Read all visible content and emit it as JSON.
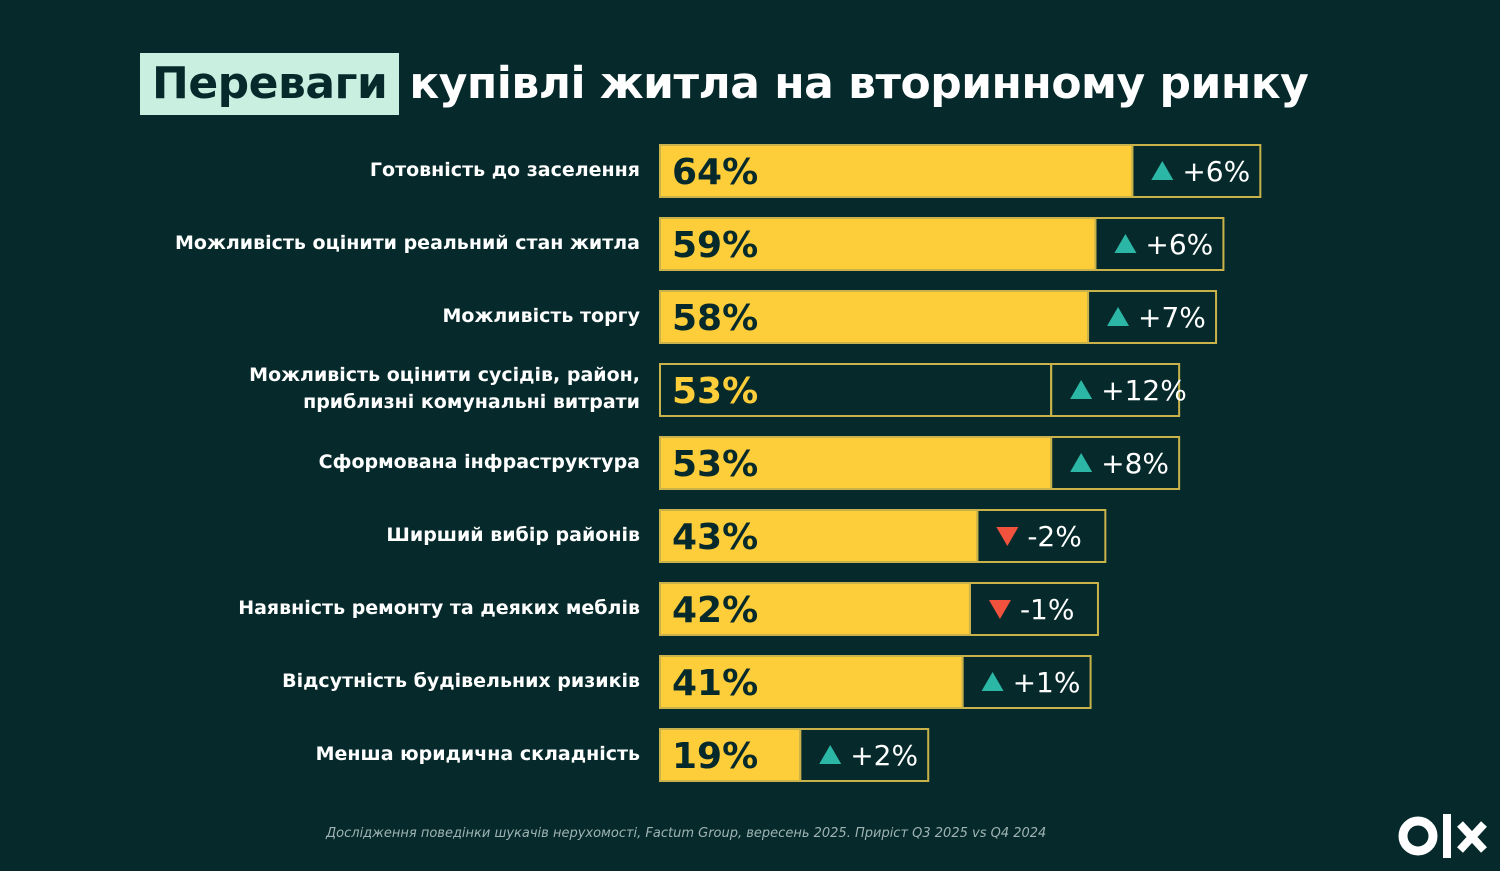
{
  "title": {
    "highlight": "Переваги",
    "rest": "купівлі житла на вторинному ринку"
  },
  "colors": {
    "background": "#062a2b",
    "bar": "#fdcd3a",
    "bar_border": "#c9b24a",
    "up": "#2bb6a6",
    "down": "#f0523d",
    "title_highlight": "#c8efe0"
  },
  "chart_data": {
    "type": "bar",
    "orientation": "horizontal",
    "categories": [
      "Готовність до заселення",
      "Можливість оцінити реальний стан житла",
      "Можливість торгу",
      "Можливість оцінити сусідів, район, приблизні комунальні витрати",
      "Сформована інфраструктура",
      "Ширший вибір районів",
      "Наявність ремонту та деяких меблів",
      "Відсутність будівельних ризиків",
      "Менша юридична складність"
    ],
    "label_lines": [
      [
        "Готовність до заселення"
      ],
      [
        "Можливість оцінити реальний стан житла"
      ],
      [
        "Можливість торгу"
      ],
      [
        "Можливість оцінити сусідів, район,",
        "приблизні комунальні витрати"
      ],
      [
        "Сформована інфраструктура"
      ],
      [
        "Ширший вибір районів"
      ],
      [
        "Наявність ремонту та деяких меблів"
      ],
      [
        "Відсутність будівельних ризиків"
      ],
      [
        "Менша юридична складність"
      ]
    ],
    "values": [
      64,
      59,
      58,
      53,
      53,
      43,
      42,
      41,
      19
    ],
    "value_labels": [
      "64%",
      "59%",
      "58%",
      "53%",
      "53%",
      "43%",
      "42%",
      "41%",
      "19%"
    ],
    "changes": [
      6,
      6,
      7,
      12,
      8,
      -2,
      -1,
      1,
      2
    ],
    "change_labels": [
      "+6%",
      "+6%",
      "+7%",
      "+12%",
      "+8%",
      "-2%",
      "-1%",
      "+1%",
      "+2%"
    ],
    "filled": [
      true,
      true,
      true,
      false,
      true,
      true,
      true,
      true,
      true
    ],
    "unit": "%"
  },
  "footnote": "Дослідження поведінки шукачів нерухомості, Factum Group, вересень 2025. Приріст Q3 2025 vs Q4 2024",
  "logo": {
    "icon": "olx-logo"
  }
}
